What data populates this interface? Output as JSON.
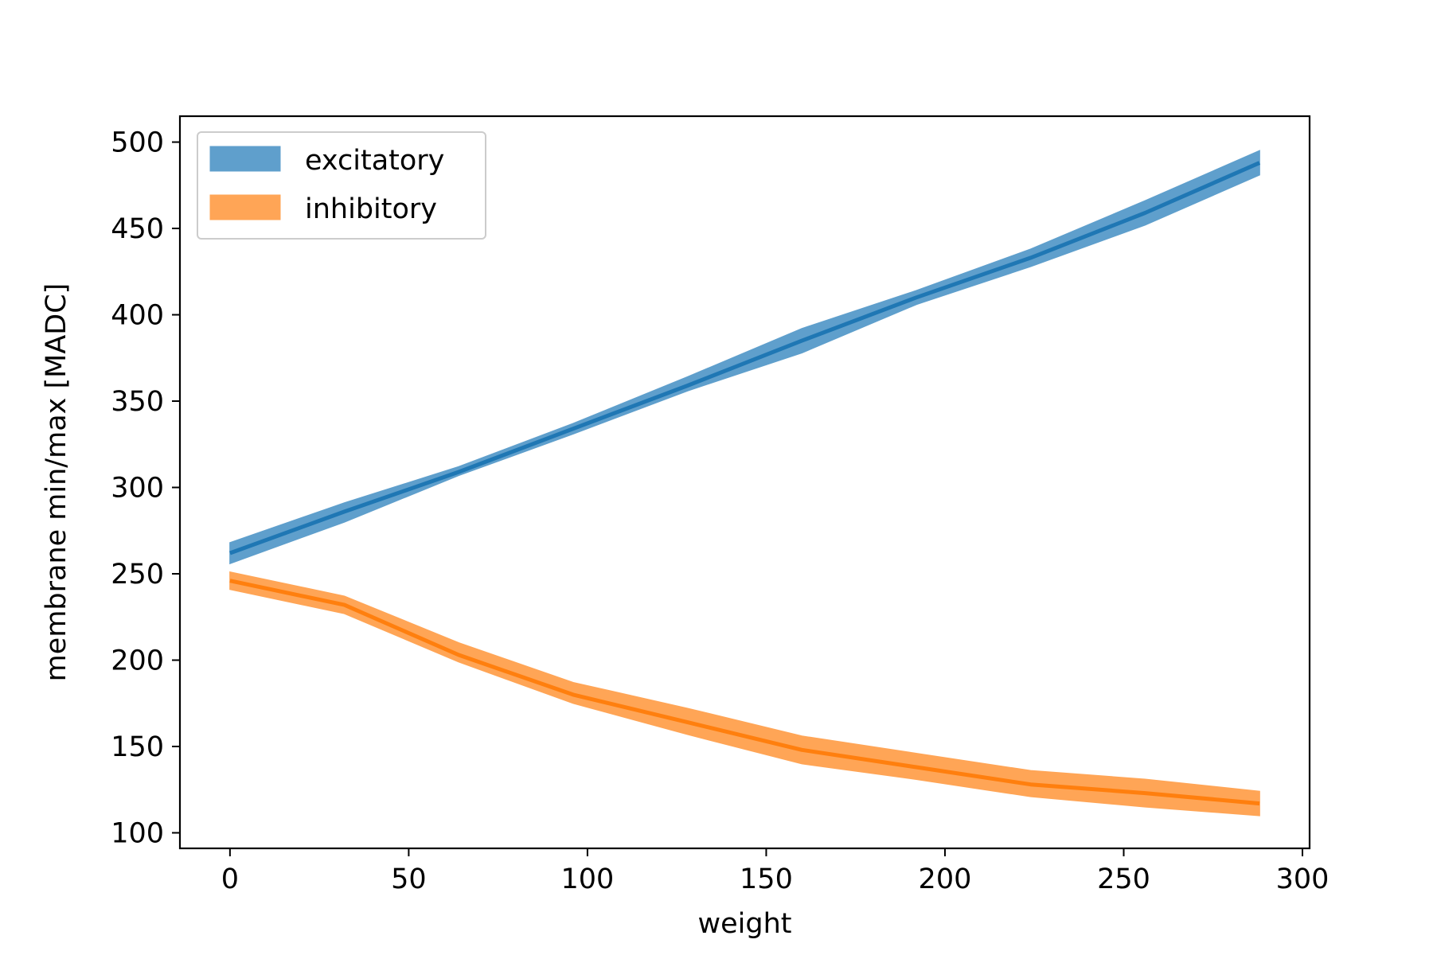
{
  "chart_data": {
    "type": "area",
    "xlabel": "weight",
    "ylabel": "membrane min/max [MADC]",
    "xlim": [
      -14,
      302
    ],
    "ylim": [
      91,
      515
    ],
    "xticks": [
      0,
      50,
      100,
      150,
      200,
      250,
      300
    ],
    "yticks": [
      100,
      150,
      200,
      250,
      300,
      350,
      400,
      450,
      500
    ],
    "xtick_labels": [
      "0",
      "50",
      "100",
      "150",
      "200",
      "250",
      "300"
    ],
    "ytick_labels": [
      "100",
      "150",
      "200",
      "250",
      "300",
      "350",
      "400",
      "450",
      "500"
    ],
    "grid": false,
    "legend_position": "top-left",
    "x": [
      0,
      32,
      64,
      96,
      128,
      160,
      192,
      224,
      256,
      288
    ],
    "series": [
      {
        "name": "excitatory",
        "color": "#1f77b4",
        "fill_color": "#5f9fcc",
        "mean": [
          262,
          286,
          309,
          334,
          359,
          385,
          410,
          433,
          459,
          488
        ],
        "lower": [
          256,
          280,
          307,
          331,
          356,
          378,
          406,
          428,
          452,
          481
        ],
        "upper": [
          268,
          291,
          312,
          337,
          364,
          392,
          414,
          438,
          466,
          495
        ]
      },
      {
        "name": "inhibitory",
        "color": "#ff7f0e",
        "fill_color": "#ffa556",
        "mean": [
          246,
          232,
          203,
          180,
          164,
          148,
          138,
          128,
          123,
          117
        ],
        "lower": [
          241,
          227,
          199,
          175,
          157,
          140,
          131,
          121,
          115,
          110
        ],
        "upper": [
          251,
          237,
          210,
          187,
          172,
          156,
          146,
          136,
          131,
          124
        ]
      }
    ]
  }
}
